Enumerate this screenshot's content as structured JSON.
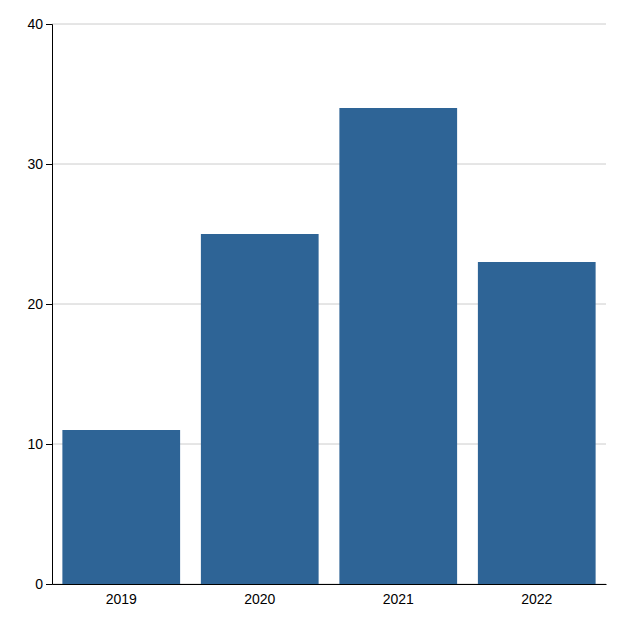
{
  "chart_data": {
    "type": "bar",
    "categories": [
      "2019",
      "2020",
      "2021",
      "2022"
    ],
    "values": [
      11,
      25,
      34,
      23
    ],
    "color": "#2e6496",
    "ylim": [
      0,
      40
    ],
    "yticks": [
      0,
      10,
      20,
      30,
      40
    ],
    "grid": true
  }
}
